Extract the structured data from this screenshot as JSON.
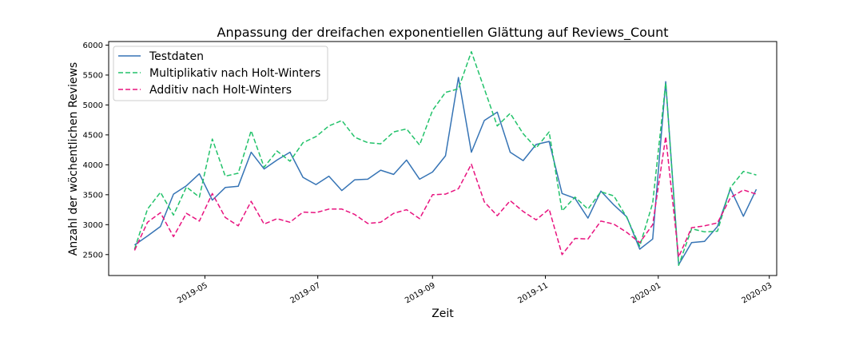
{
  "chart_data": {
    "type": "line",
    "title": "Anpassung der dreifachen exponentiellen Glättung auf Reviews_Count",
    "xlabel": "Zeit",
    "ylabel": "Anzahl der wöchentlichen Reviews",
    "xlim": [
      "2019-03-10",
      "2020-03-05"
    ],
    "ylim": [
      2150,
      6060
    ],
    "x_ticks": [
      "2019-05",
      "2019-07",
      "2019-09",
      "2019-11",
      "2020-01",
      "2020-03"
    ],
    "y_ticks": [
      2500,
      3000,
      3500,
      4000,
      4500,
      5000,
      5500,
      6000
    ],
    "legend_position": "upper-left",
    "grid": false,
    "x": [
      "2019-03-24",
      "2019-03-31",
      "2019-04-07",
      "2019-04-14",
      "2019-04-21",
      "2019-04-28",
      "2019-05-05",
      "2019-05-12",
      "2019-05-19",
      "2019-05-26",
      "2019-06-02",
      "2019-06-09",
      "2019-06-16",
      "2019-06-23",
      "2019-06-30",
      "2019-07-07",
      "2019-07-14",
      "2019-07-21",
      "2019-07-28",
      "2019-08-04",
      "2019-08-11",
      "2019-08-18",
      "2019-08-25",
      "2019-09-01",
      "2019-09-08",
      "2019-09-15",
      "2019-09-22",
      "2019-09-29",
      "2019-10-06",
      "2019-10-13",
      "2019-10-20",
      "2019-10-27",
      "2019-11-03",
      "2019-11-10",
      "2019-11-17",
      "2019-11-24",
      "2019-12-01",
      "2019-12-08",
      "2019-12-15",
      "2019-12-22",
      "2019-12-29",
      "2020-01-05",
      "2020-01-12",
      "2020-01-19",
      "2020-01-26",
      "2020-02-02",
      "2020-02-09",
      "2020-02-16",
      "2020-02-23"
    ],
    "series": [
      {
        "name": "Testdaten",
        "color": "#3674b5",
        "dash": "solid",
        "values": [
          2660,
          2810,
          2970,
          3510,
          3650,
          3850,
          3410,
          3620,
          3640,
          4210,
          3930,
          4080,
          4210,
          3790,
          3670,
          3810,
          3570,
          3750,
          3760,
          3910,
          3840,
          4080,
          3760,
          3880,
          4150,
          5460,
          4210,
          4740,
          4880,
          4210,
          4070,
          4340,
          4390,
          3520,
          3440,
          3110,
          3560,
          3330,
          3130,
          2590,
          2760,
          5390,
          2330,
          2700,
          2720,
          2970,
          3600,
          3140,
          3590
        ]
      },
      {
        "name": "Multiplikativ nach Holt-Winters",
        "color": "#22c26a",
        "dash": "dashed",
        "values": [
          2590,
          3260,
          3540,
          3160,
          3630,
          3460,
          4430,
          3810,
          3860,
          4570,
          3960,
          4230,
          4060,
          4370,
          4470,
          4650,
          4740,
          4460,
          4370,
          4350,
          4550,
          4600,
          4330,
          4910,
          5210,
          5270,
          5890,
          5270,
          4650,
          4860,
          4520,
          4280,
          4550,
          3230,
          3460,
          3260,
          3550,
          3480,
          3120,
          2640,
          3360,
          5370,
          2320,
          2930,
          2880,
          2890,
          3620,
          3890,
          3830
        ]
      },
      {
        "name": "Additiv nach Holt-Winters",
        "color": "#e8137f",
        "dash": "dashed",
        "values": [
          2570,
          3040,
          3200,
          2800,
          3190,
          3060,
          3520,
          3120,
          2980,
          3390,
          3010,
          3100,
          3040,
          3210,
          3200,
          3260,
          3260,
          3170,
          3020,
          3040,
          3190,
          3250,
          3100,
          3500,
          3510,
          3600,
          4010,
          3380,
          3150,
          3400,
          3220,
          3080,
          3260,
          2500,
          2770,
          2760,
          3060,
          3010,
          2870,
          2700,
          3000,
          4470,
          2460,
          2950,
          2980,
          3030,
          3450,
          3580,
          3510
        ]
      }
    ]
  }
}
